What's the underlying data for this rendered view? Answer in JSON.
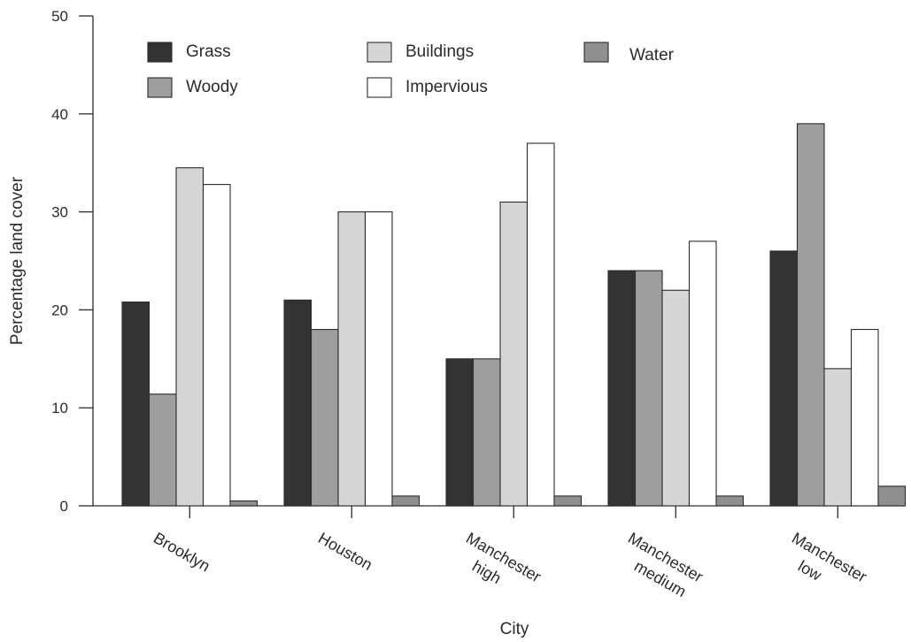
{
  "chart_data": {
    "type": "bar",
    "xlabel": "City",
    "ylabel": "Percentage land cover",
    "ylim": [
      0,
      50
    ],
    "yticks": [
      "0",
      "10",
      "20",
      "30",
      "40",
      "50"
    ],
    "categories": [
      [
        "Brooklyn"
      ],
      [
        "Houston"
      ],
      [
        "Manchester",
        "high"
      ],
      [
        "Manchester",
        "medium"
      ],
      [
        "Manchester",
        "low"
      ]
    ],
    "series": [
      {
        "name": "Grass",
        "color": "#333333",
        "values": [
          20.8,
          21,
          15,
          24,
          26
        ]
      },
      {
        "name": "Woody",
        "color": "#9e9e9e",
        "values": [
          11.4,
          18,
          15,
          24,
          39
        ]
      },
      {
        "name": "Buildings",
        "color": "#d6d6d6",
        "values": [
          34.5,
          30,
          31,
          22,
          14
        ]
      },
      {
        "name": "Impervious",
        "color": "#ffffff",
        "values": [
          32.8,
          30,
          37,
          27,
          18
        ]
      },
      {
        "name": "Water",
        "color": "#8f8f8f",
        "values": [
          0.5,
          1,
          1,
          1,
          2
        ]
      }
    ],
    "grid": false,
    "legend_position": "top-left"
  }
}
